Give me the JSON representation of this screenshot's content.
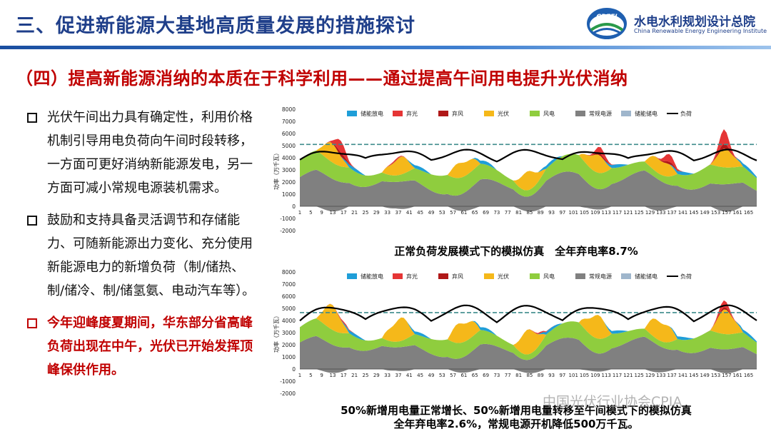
{
  "header": {
    "title": "三、促进新能源大基地高质量发展的措施探讨",
    "logo": {
      "emblem_text": "CREEI",
      "name": "水电水利规划设计总院",
      "english": "China Renewable Energy Engineering Institute"
    }
  },
  "subtitle": "（四）提高新能源消纳的本质在于科学利用——通过提高午间用电提升光伏消纳",
  "bullets": [
    {
      "text": "光伏午间出力具有确定性，利用价格机制引导用电负荷向午间时段转移，一方面可更好消纳新能源发电，另一方面可减小常规电源装机需求。",
      "style": "normal"
    },
    {
      "text": "鼓励和支持具备灵活调节和存储能力、可随新能源出力变化、充分使用新能源电力的新增负荷（制/储热、制/储冷、制/储氢氨、电动汽车等）。",
      "style": "normal"
    },
    {
      "text": "今年迎峰度夏期间，华东部分省高峰负荷出现在中午，光伏已开始发挥顶峰保供作用。",
      "style": "highlight"
    }
  ],
  "legend": [
    "储能放电",
    "弃光",
    "弃风",
    "光伏",
    "风电",
    "常规电源",
    "储能储电",
    "负荷"
  ],
  "colors": {
    "储能放电": "#1f9ed8",
    "弃光": "#e53535",
    "弃风": "#b01818",
    "光伏": "#f5b81a",
    "风电": "#8fcd3e",
    "常规电源": "#808080",
    "储能储电": "#9fb6cc",
    "负荷": "#000000",
    "reference_line": "#3d8b8b"
  },
  "ylabel": "功率（万千瓦）",
  "x_ticks": [
    "1",
    "5",
    "9",
    "13",
    "17",
    "21",
    "25",
    "29",
    "33",
    "37",
    "41",
    "45",
    "49",
    "53",
    "57",
    "61",
    "65",
    "69",
    "73",
    "77",
    "81",
    "85",
    "89",
    "93",
    "97",
    "101",
    "105",
    "109",
    "113",
    "117",
    "121",
    "125",
    "129",
    "133",
    "137",
    "141",
    "145",
    "149",
    "153",
    "157",
    "161",
    "165"
  ],
  "charts": [
    {
      "caption": "正常负荷发展模式下的模拟仿真　全年弃电率8.7%",
      "chart_data": {
        "type": "area",
        "ylim": [
          -2000,
          8000
        ],
        "yticks": [
          -2000,
          -1000,
          0,
          1000,
          2000,
          3000,
          4000,
          5000,
          6000,
          7000,
          8000
        ],
        "reference_line": 5100,
        "x_count": 168,
        "load_base": 4150,
        "load_day_amp": 700,
        "load_wander_amp": 150,
        "conventional_base": 2000,
        "conventional_wander_amp": 1050,
        "wind_base": 1150,
        "wind_wander_amp": 450,
        "solar_peak": 1600,
        "discharge_base": 280,
        "storage_charge_trough": 450,
        "curtail_peaks": [
          {
            "x": 15,
            "value": 1300
          },
          {
            "x": 35,
            "value": 150
          },
          {
            "x": 110,
            "value": 750
          },
          {
            "x": 135,
            "value": 850
          },
          {
            "x": 155,
            "value": 1600
          }
        ]
      }
    },
    {
      "caption": "50%新增用电量正常增长、50%新增用电量转移至午间模式下的模拟仿真",
      "caption_line2": "全年弃电率2.6%，常规电源开机降低500万千瓦。",
      "chart_data": {
        "type": "area",
        "ylim": [
          -2000,
          8000
        ],
        "yticks": [
          -2000,
          -1000,
          0,
          1000,
          2000,
          3000,
          4000,
          5000,
          6000,
          7000,
          8000
        ],
        "reference_line": 4650,
        "x_count": 168,
        "load_base": 4500,
        "load_day_amp": 1150,
        "load_wander_amp": 130,
        "conventional_base": 1850,
        "conventional_wander_amp": 900,
        "wind_base": 1050,
        "wind_wander_amp": 420,
        "solar_peak": 2100,
        "discharge_base": 250,
        "storage_charge_trough": 350,
        "curtail_peaks": [
          {
            "x": 16,
            "value": 150
          },
          {
            "x": 88,
            "value": 120
          },
          {
            "x": 155,
            "value": 750
          }
        ]
      }
    }
  ],
  "watermark": "中国光伏行业协会CPIA"
}
